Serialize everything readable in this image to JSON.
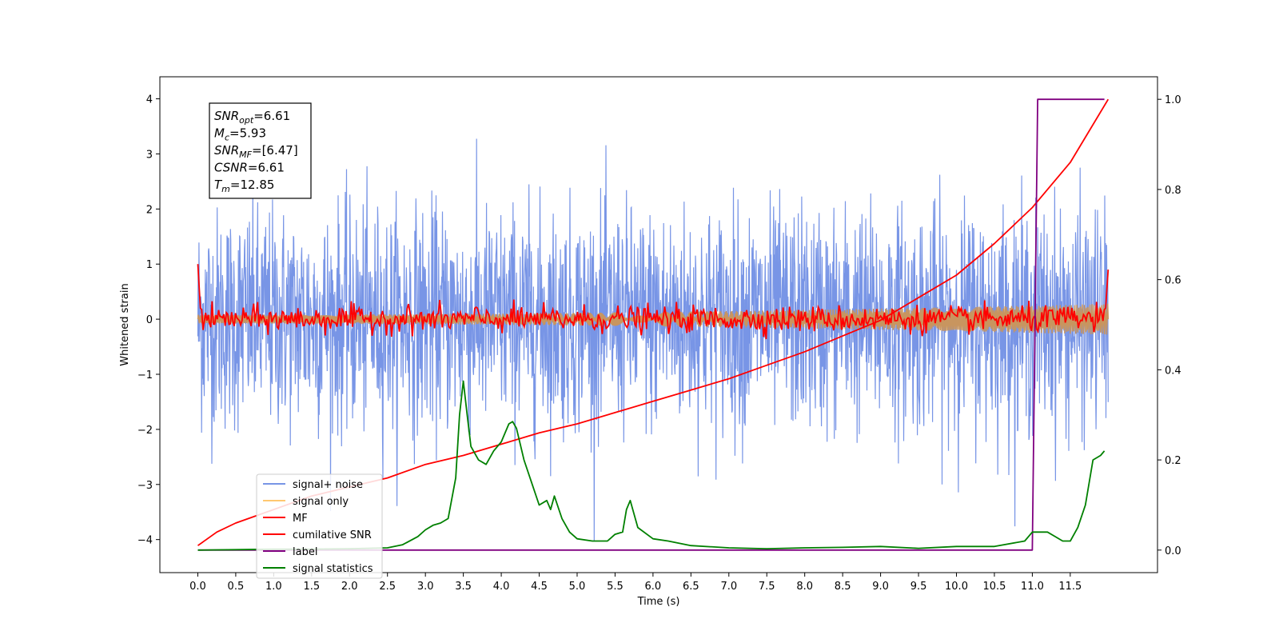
{
  "chart_data": {
    "type": "line",
    "xlabel": "Time (s)",
    "ylabel": "Whitened strain",
    "xlim": [
      -0.5,
      12.65
    ],
    "ylim": [
      -4.6,
      4.4
    ],
    "y2lim": [
      -0.05,
      1.05
    ],
    "x_ticks": [
      "0.0",
      "0.5",
      "1.0",
      "1.5",
      "2.0",
      "2.5",
      "3.0",
      "3.5",
      "4.0",
      "4.5",
      "5.0",
      "5.5",
      "6.0",
      "6.5",
      "7.0",
      "7.5",
      "8.0",
      "8.5",
      "9.0",
      "9.5",
      "10.0",
      "10.5",
      "11.0",
      "11.5"
    ],
    "y_ticks": [
      "−4",
      "−3",
      "−2",
      "−1",
      "0",
      "1",
      "2",
      "3",
      "4"
    ],
    "y2_ticks": [
      "0.0",
      "0.2",
      "0.4",
      "0.6",
      "0.8",
      "1.0"
    ],
    "grid": false,
    "legend_position": "lower-left",
    "annotation": [
      {
        "sym": "SNR",
        "sub": "opt",
        "rest": "=6.61"
      },
      {
        "sym": "M",
        "sub": "c",
        "rest": "=5.93"
      },
      {
        "sym": "SNR",
        "sub": "MF",
        "rest": "=[6.47]"
      },
      {
        "sym": "CSNR",
        "sub": "",
        "rest": "=6.61"
      },
      {
        "sym": "T",
        "sub": "m",
        "rest": "=12.85"
      }
    ],
    "series": [
      {
        "name": "signal+ noise",
        "color": "#7895e6",
        "axis": "left",
        "style": "noise",
        "x_range": [
          0,
          12.0
        ],
        "std": 1.0,
        "y_range_seen": [
          -4.1,
          4.0
        ]
      },
      {
        "name": "signal only",
        "color": "#c8955f",
        "axis": "left",
        "style": "chirp",
        "x_range": [
          0,
          12.0
        ],
        "amplitude_start": 0.08,
        "amplitude_end": 0.28
      },
      {
        "name": "MF",
        "color": "#ff0000",
        "axis": "left",
        "style": "noisy-line",
        "x_range": [
          0,
          12.0
        ],
        "start": 1.0,
        "end": 0.9,
        "std": 0.12
      },
      {
        "name": "cumilative SNR",
        "color": "#ff0000",
        "axis": "right",
        "x": [
          0.0,
          0.25,
          0.5,
          1.0,
          1.5,
          2.0,
          2.5,
          3.0,
          3.5,
          4.0,
          4.5,
          5.0,
          5.5,
          6.0,
          6.5,
          7.0,
          7.5,
          8.0,
          8.5,
          9.0,
          9.5,
          10.0,
          10.5,
          11.0,
          11.5,
          12.0
        ],
        "y": [
          0.01,
          0.04,
          0.06,
          0.09,
          0.12,
          0.14,
          0.16,
          0.19,
          0.21,
          0.235,
          0.26,
          0.28,
          0.305,
          0.33,
          0.355,
          0.38,
          0.41,
          0.44,
          0.475,
          0.51,
          0.56,
          0.61,
          0.68,
          0.76,
          0.86,
          1.0
        ]
      },
      {
        "name": "label",
        "color": "#800080",
        "axis": "right",
        "x": [
          0.0,
          11.0,
          11.07,
          11.95
        ],
        "y": [
          0.0,
          0.0,
          1.0,
          1.0
        ]
      },
      {
        "name": "signal statistics",
        "color": "#008000",
        "axis": "right",
        "x": [
          0.0,
          0.5,
          1.0,
          1.5,
          2.0,
          2.5,
          2.7,
          2.9,
          3.0,
          3.1,
          3.2,
          3.3,
          3.4,
          3.45,
          3.5,
          3.55,
          3.6,
          3.7,
          3.8,
          3.9,
          4.0,
          4.1,
          4.15,
          4.2,
          4.3,
          4.4,
          4.5,
          4.6,
          4.65,
          4.7,
          4.8,
          4.9,
          5.0,
          5.2,
          5.4,
          5.5,
          5.6,
          5.65,
          5.7,
          5.8,
          6.0,
          6.2,
          6.5,
          7.0,
          7.5,
          8.0,
          8.5,
          9.0,
          9.5,
          10.0,
          10.5,
          10.9,
          11.0,
          11.2,
          11.3,
          11.4,
          11.5,
          11.6,
          11.7,
          11.8,
          11.9,
          11.95
        ],
        "y": [
          0.0,
          0.001,
          0.002,
          0.002,
          0.003,
          0.005,
          0.012,
          0.03,
          0.045,
          0.055,
          0.06,
          0.07,
          0.16,
          0.3,
          0.375,
          0.3,
          0.23,
          0.2,
          0.19,
          0.22,
          0.24,
          0.28,
          0.285,
          0.27,
          0.2,
          0.15,
          0.1,
          0.11,
          0.09,
          0.12,
          0.07,
          0.04,
          0.025,
          0.02,
          0.02,
          0.035,
          0.04,
          0.09,
          0.11,
          0.05,
          0.025,
          0.02,
          0.01,
          0.005,
          0.003,
          0.005,
          0.006,
          0.008,
          0.004,
          0.008,
          0.008,
          0.02,
          0.04,
          0.04,
          0.03,
          0.02,
          0.02,
          0.05,
          0.1,
          0.2,
          0.21,
          0.22
        ]
      }
    ]
  }
}
